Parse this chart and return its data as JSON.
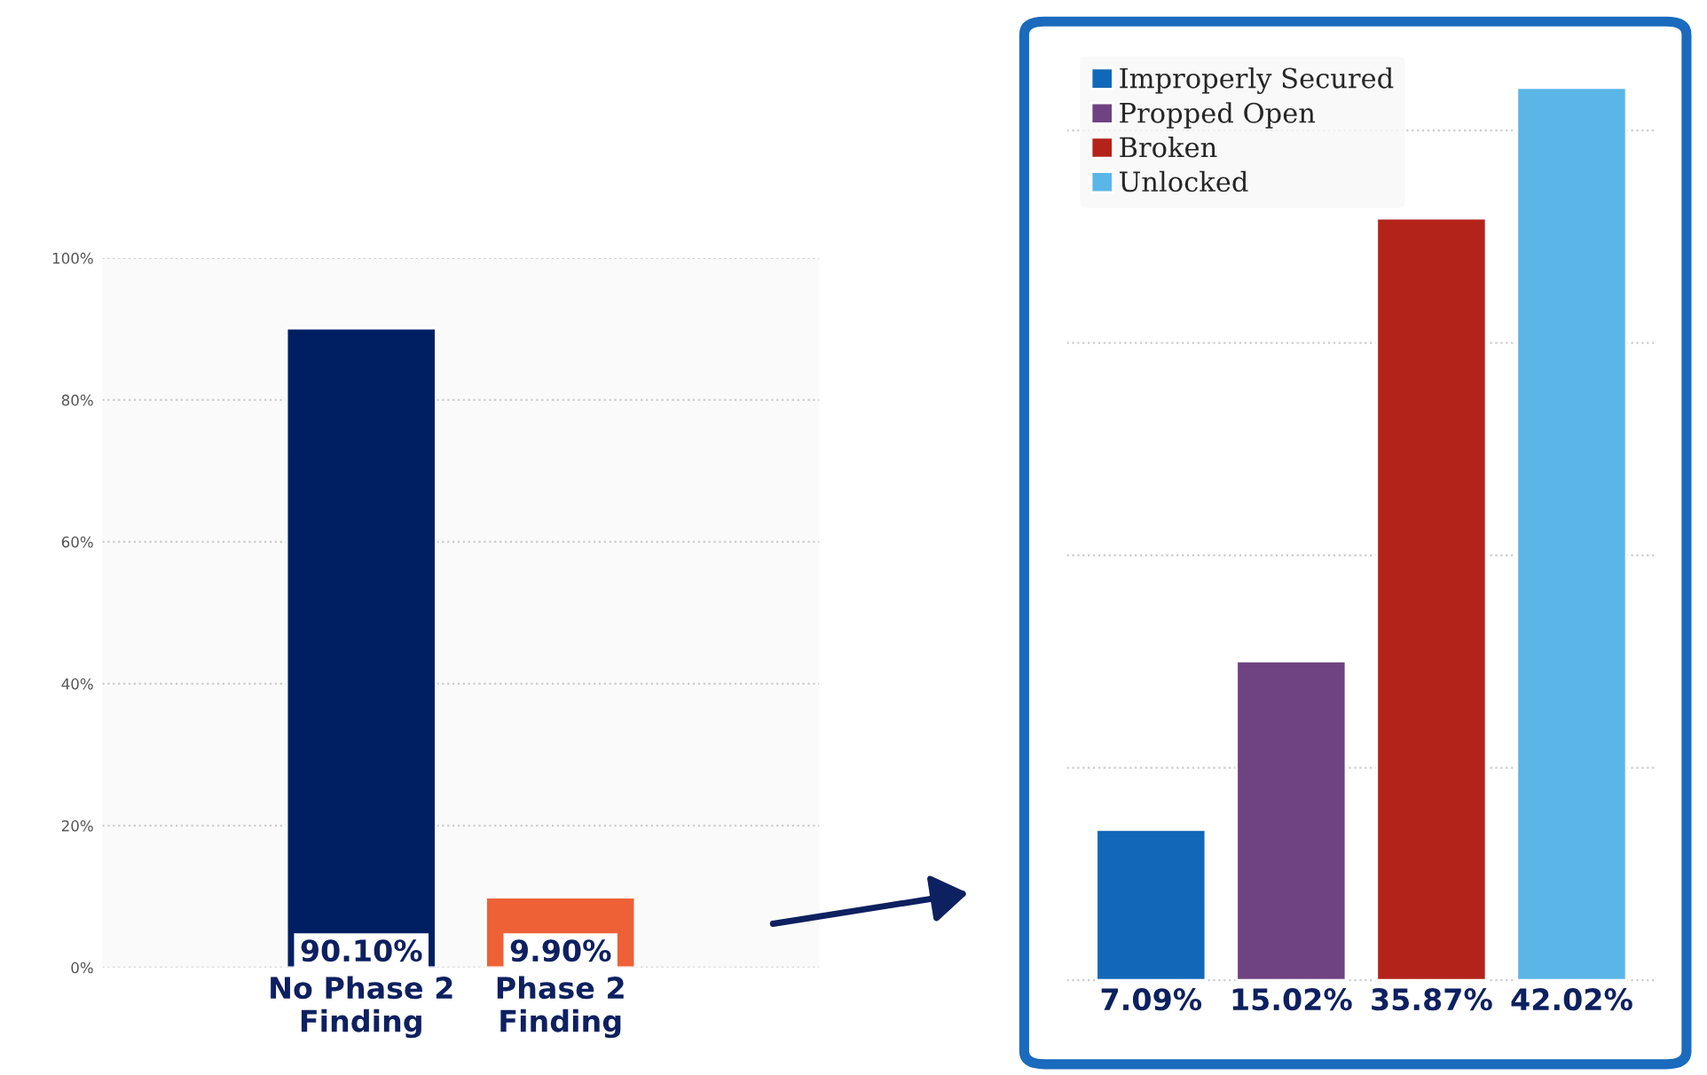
{
  "chart_data": [
    {
      "type": "bar",
      "categories": [
        "No Phase 2\nFinding",
        "Phase 2\nFinding"
      ],
      "colors": [
        "#001f63",
        "#ee6137"
      ],
      "values": [
        90.1,
        9.9
      ],
      "value_labels": [
        "90.10%",
        "9.90%"
      ],
      "ylim": [
        0,
        100
      ],
      "yticks": [
        {
          "value": 0,
          "label": "0%"
        },
        {
          "value": 20,
          "label": "20%"
        },
        {
          "value": 40,
          "label": "40%"
        },
        {
          "value": 60,
          "label": "60%"
        },
        {
          "value": 80,
          "label": "80%"
        },
        {
          "value": 100,
          "label": "100%"
        }
      ],
      "grid": "y"
    },
    {
      "type": "bar",
      "stacked": true,
      "categories": [
        null,
        null,
        null,
        null
      ],
      "series": [
        {
          "name": "Improperly Secured",
          "color": "#1268b8",
          "values": [
            7.09,
            null,
            null,
            null
          ],
          "value_labels": [
            "7.09%",
            null,
            null,
            null
          ]
        },
        {
          "name": "Propped Open",
          "color": "#6f4282",
          "values": [
            null,
            15.02,
            null,
            null
          ],
          "value_labels": [
            null,
            "15.02%",
            null,
            null
          ]
        },
        {
          "name": "Broken",
          "color": "#b3231a",
          "values": [
            null,
            null,
            35.87,
            null
          ],
          "value_labels": [
            null,
            null,
            "35.87%",
            null
          ]
        },
        {
          "name": "Unlocked",
          "color": "#5ab6e6",
          "values": [
            null,
            null,
            null,
            42.02
          ],
          "value_labels": [
            null,
            null,
            null,
            "42.02%"
          ]
        }
      ],
      "grid": "y",
      "legend": "top left",
      "tick_labels": false
    }
  ]
}
